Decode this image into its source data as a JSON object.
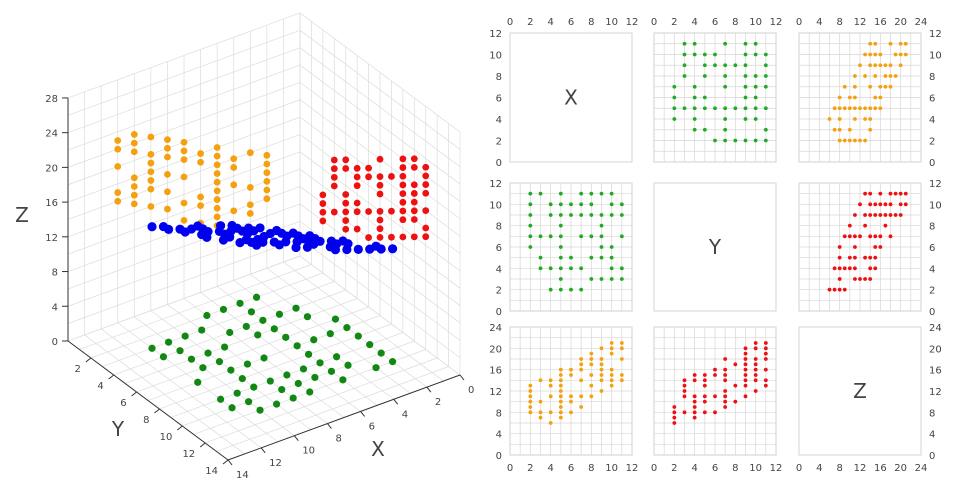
{
  "chart_data": [
    {
      "type": "scatter3d",
      "xlabel": "X",
      "ylabel": "Y",
      "zlabel": "Z",
      "xlim": [
        0,
        14
      ],
      "ylim": [
        0,
        14
      ],
      "zlim": [
        0,
        28
      ],
      "xticks": [
        0,
        2,
        4,
        6,
        8,
        10,
        12,
        14
      ],
      "yticks": [
        2,
        4,
        6,
        8,
        10,
        12,
        14
      ],
      "zticks": [
        0,
        4,
        8,
        12,
        16,
        20,
        24,
        28
      ],
      "grid": true,
      "colors": {
        "points": "#0000ee",
        "xy_projection": "#118811",
        "xz_projection": "#f5a00f",
        "yz_projection": "#ee1111"
      },
      "points": [
        [
          2,
          11,
          13
        ],
        [
          3,
          11,
          14
        ],
        [
          5,
          11,
          16
        ],
        [
          7,
          11,
          18
        ],
        [
          8,
          11,
          19
        ],
        [
          9,
          11,
          20
        ],
        [
          10,
          11,
          21
        ],
        [
          2,
          10,
          12
        ],
        [
          4,
          10,
          14
        ],
        [
          5,
          10,
          15
        ],
        [
          6,
          10,
          16
        ],
        [
          7,
          10,
          17
        ],
        [
          8,
          10,
          18
        ],
        [
          10,
          10,
          20
        ],
        [
          11,
          10,
          21
        ],
        [
          2,
          9,
          11
        ],
        [
          4,
          9,
          13
        ],
        [
          5,
          9,
          14
        ],
        [
          6,
          9,
          15
        ],
        [
          7,
          9,
          16
        ],
        [
          8,
          9,
          17
        ],
        [
          9,
          9,
          18
        ],
        [
          10,
          9,
          19
        ],
        [
          11,
          9,
          20
        ],
        [
          2,
          8,
          10
        ],
        [
          5,
          8,
          13
        ],
        [
          9,
          8,
          17
        ],
        [
          2,
          7,
          9
        ],
        [
          3,
          7,
          10
        ],
        [
          4,
          7,
          11
        ],
        [
          5,
          7,
          12
        ],
        [
          7,
          7,
          14
        ],
        [
          8,
          7,
          15
        ],
        [
          9,
          7,
          16
        ],
        [
          11,
          7,
          18
        ],
        [
          2,
          6,
          8
        ],
        [
          5,
          6,
          11
        ],
        [
          9,
          6,
          15
        ],
        [
          10,
          6,
          16
        ],
        [
          3,
          5,
          8
        ],
        [
          5,
          5,
          10
        ],
        [
          6,
          5,
          11
        ],
        [
          8,
          5,
          13
        ],
        [
          9,
          5,
          14
        ],
        [
          10,
          5,
          15
        ],
        [
          3,
          4,
          7
        ],
        [
          4,
          4,
          8
        ],
        [
          5,
          4,
          9
        ],
        [
          6,
          4,
          10
        ],
        [
          7,
          4,
          11
        ],
        [
          10,
          4,
          14
        ],
        [
          11,
          4,
          15
        ],
        [
          5,
          3,
          8
        ],
        [
          8,
          3,
          11
        ],
        [
          9,
          3,
          12
        ],
        [
          10,
          3,
          13
        ],
        [
          11,
          3,
          14
        ],
        [
          4,
          2,
          6
        ],
        [
          5,
          2,
          7
        ],
        [
          6,
          2,
          8
        ],
        [
          7,
          2,
          9
        ]
      ]
    },
    {
      "type": "scatter_matrix",
      "variables": [
        "X",
        "Y",
        "Z"
      ],
      "ranges": {
        "X": [
          0,
          12
        ],
        "Y": [
          0,
          12
        ],
        "Z": [
          0,
          24
        ]
      },
      "ticks": {
        "X": [
          0,
          2,
          4,
          6,
          8,
          10,
          12
        ],
        "Y": [
          0,
          2,
          4,
          6,
          8,
          10,
          12
        ],
        "Z": [
          0,
          4,
          8,
          12,
          16,
          20,
          24
        ]
      },
      "grid": true,
      "pair_colors": {
        "X-Y": "#22aa22",
        "X-Z": "#f5a00f",
        "Y-Z": "#ee1111"
      },
      "points_source": "same points as 3D scatter"
    }
  ]
}
